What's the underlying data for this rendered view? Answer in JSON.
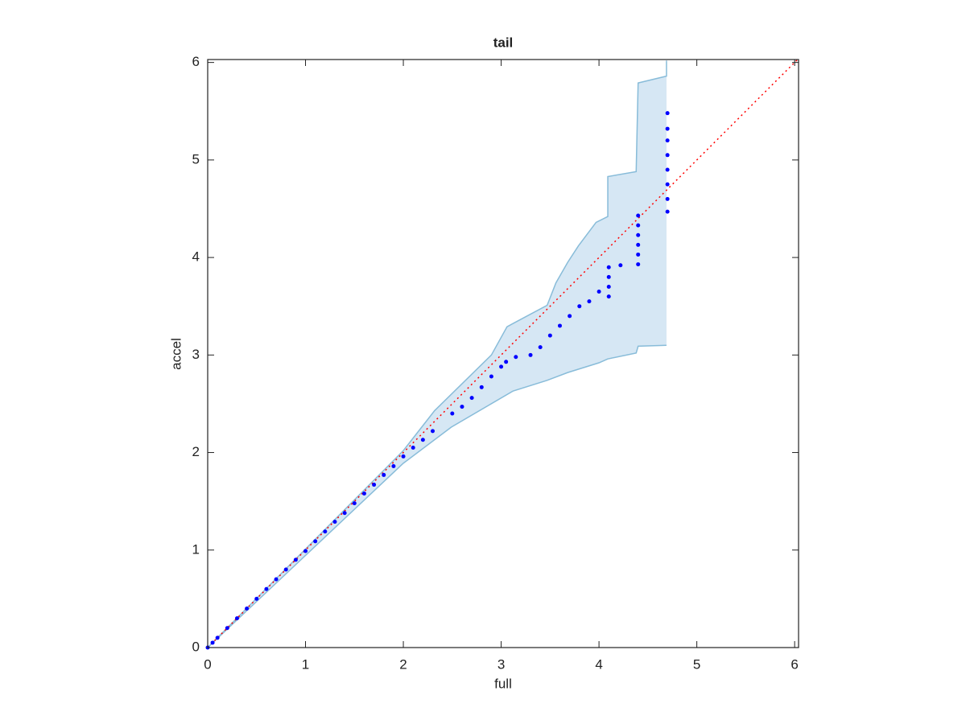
{
  "chart_data": {
    "type": "scatter",
    "title": "tail",
    "x_label": "full",
    "y_label": "accel",
    "xlim": [
      0,
      6.04
    ],
    "ylim": [
      0,
      6.03
    ],
    "xticks": [
      0,
      1,
      2,
      3,
      4,
      5,
      6
    ],
    "yticks": [
      0,
      1,
      2,
      3,
      4,
      5,
      6
    ],
    "x": [
      0,
      0.05,
      0.1,
      0.2,
      0.3,
      0.4,
      0.5,
      0.6,
      0.7,
      0.8,
      0.9,
      1.0,
      1.1,
      1.2,
      1.3,
      1.4,
      1.5,
      1.6,
      1.7,
      1.8,
      1.9,
      2.0,
      2.1,
      2.2,
      2.3,
      2.5,
      2.6,
      2.7,
      2.8,
      2.9,
      3.0,
      3.05,
      3.15,
      3.3,
      3.4,
      3.5,
      3.6,
      3.7,
      3.8,
      3.9,
      4.0,
      4.1,
      4.1,
      4.1,
      4.1,
      4.22,
      4.4,
      4.4,
      4.4,
      4.4,
      4.4,
      4.4,
      4.7,
      4.7,
      4.7,
      4.7,
      4.7,
      4.7,
      4.7,
      4.7
    ],
    "values": [
      0,
      0.05,
      0.1,
      0.2,
      0.3,
      0.4,
      0.5,
      0.6,
      0.7,
      0.8,
      0.9,
      0.99,
      1.09,
      1.19,
      1.29,
      1.38,
      1.48,
      1.58,
      1.67,
      1.77,
      1.86,
      1.96,
      2.05,
      2.13,
      2.22,
      2.4,
      2.47,
      2.56,
      2.67,
      2.78,
      2.88,
      2.93,
      2.98,
      3.0,
      3.08,
      3.2,
      3.3,
      3.4,
      3.5,
      3.55,
      3.65,
      3.6,
      3.7,
      3.8,
      3.9,
      3.92,
      3.93,
      4.03,
      4.13,
      4.23,
      4.33,
      4.43,
      4.47,
      4.6,
      4.75,
      4.9,
      5.05,
      5.2,
      5.32,
      5.48
    ],
    "color": "#0000ff",
    "band": {
      "color": "#d6e7f4",
      "edge_color": "#88bcd9",
      "upper": {
        "x": [
          0,
          2.0,
          2.32,
          2.9,
          3.06,
          3.47,
          3.56,
          3.68,
          3.79,
          3.97,
          4.09,
          4.09,
          4.38,
          4.4,
          4.69,
          4.69
        ],
        "values": [
          0,
          2.02,
          2.43,
          3.0,
          3.29,
          3.51,
          3.74,
          3.95,
          4.12,
          4.36,
          4.42,
          4.83,
          4.88,
          5.79,
          5.86,
          6.02
        ]
      },
      "lower": {
        "x": [
          0,
          2.0,
          2.49,
          3.12,
          3.47,
          3.68,
          4.0,
          4.09,
          4.38,
          4.4,
          4.69
        ],
        "values": [
          0,
          1.89,
          2.26,
          2.63,
          2.74,
          2.82,
          2.92,
          2.96,
          3.02,
          3.09,
          3.1
        ]
      }
    },
    "reference_line": {
      "color": "#ff0000",
      "x": [
        0,
        6.03
      ],
      "values": [
        0,
        6.03
      ]
    }
  }
}
